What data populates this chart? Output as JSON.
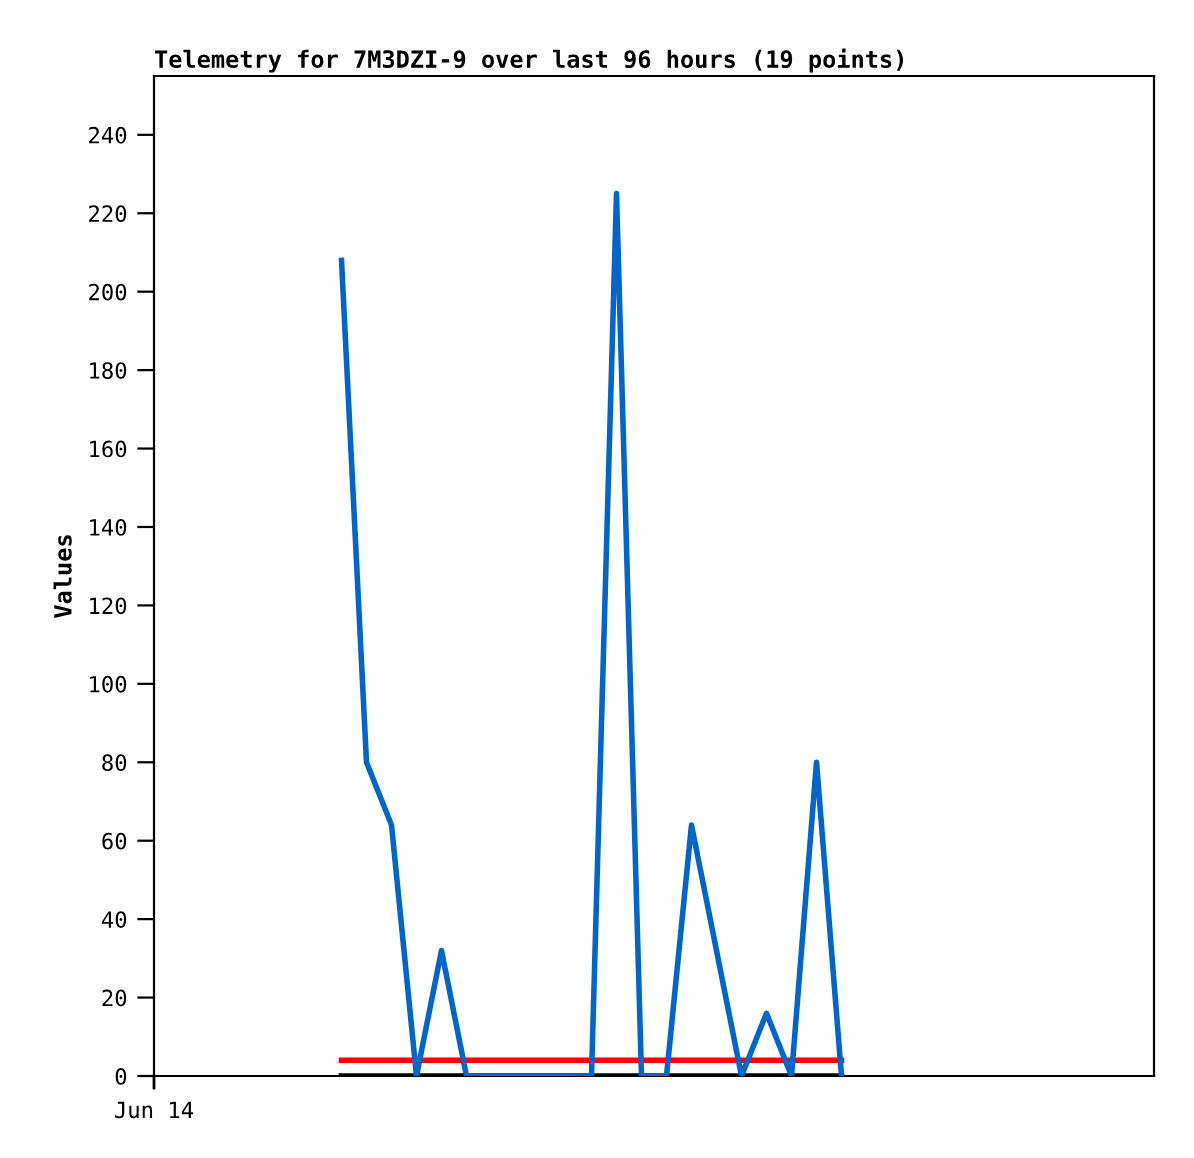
{
  "chart_data": {
    "type": "line",
    "title": "Telemetry for 7M3DZI-9 over last 96 hours (19 points)",
    "ylabel": "Values",
    "categories": [
      null,
      null,
      null,
      null,
      null,
      null,
      null,
      null,
      null,
      null,
      null,
      null,
      null,
      null,
      null,
      null,
      null,
      null,
      null,
      null,
      null,
      null,
      null,
      null,
      null,
      null,
      null,
      null,
      null,
      null,
      null,
      null,
      null,
      null,
      null,
      null,
      null,
      null,
      null,
      null
    ],
    "series": [
      {
        "color": "#0066cc",
        "values": [
          null,
          null,
          null,
          null,
          null,
          null,
          null,
          208,
          80,
          64,
          0,
          32,
          0,
          null,
          null,
          null,
          null,
          0,
          225,
          0,
          0,
          64,
          null,
          0,
          16,
          0,
          80,
          0,
          null,
          null,
          null,
          null,
          null,
          null,
          null,
          null,
          null,
          null,
          null,
          null
        ]
      },
      {
        "color": "#ff0000",
        "values": [
          null,
          null,
          null,
          null,
          null,
          null,
          null,
          4,
          4,
          4,
          4,
          4,
          4,
          4,
          4,
          4,
          4,
          4,
          4,
          4,
          4,
          4,
          4,
          4,
          4,
          4,
          4,
          4,
          null,
          null,
          null,
          null,
          null,
          null,
          null,
          null,
          null,
          null,
          null,
          null
        ]
      },
      {
        "color": "#000000",
        "values": [
          null,
          null,
          null,
          null,
          null,
          null,
          null,
          0,
          0,
          0,
          0,
          0,
          0,
          0,
          0,
          0,
          0,
          0,
          0,
          0,
          0,
          0,
          0,
          0,
          0,
          0,
          0,
          0,
          null,
          null,
          null,
          null,
          null,
          null,
          null,
          null,
          null,
          null,
          null,
          null
        ]
      }
    ],
    "annotations": [
      "Jun 14"
    ],
    "ylim": [
      0,
      255
    ],
    "yticks": [
      0,
      20,
      40,
      60,
      80,
      100,
      120,
      140,
      160,
      180,
      200,
      220,
      240
    ],
    "grid": false,
    "legend": false,
    "marker": "none",
    "line_style": "solid"
  }
}
